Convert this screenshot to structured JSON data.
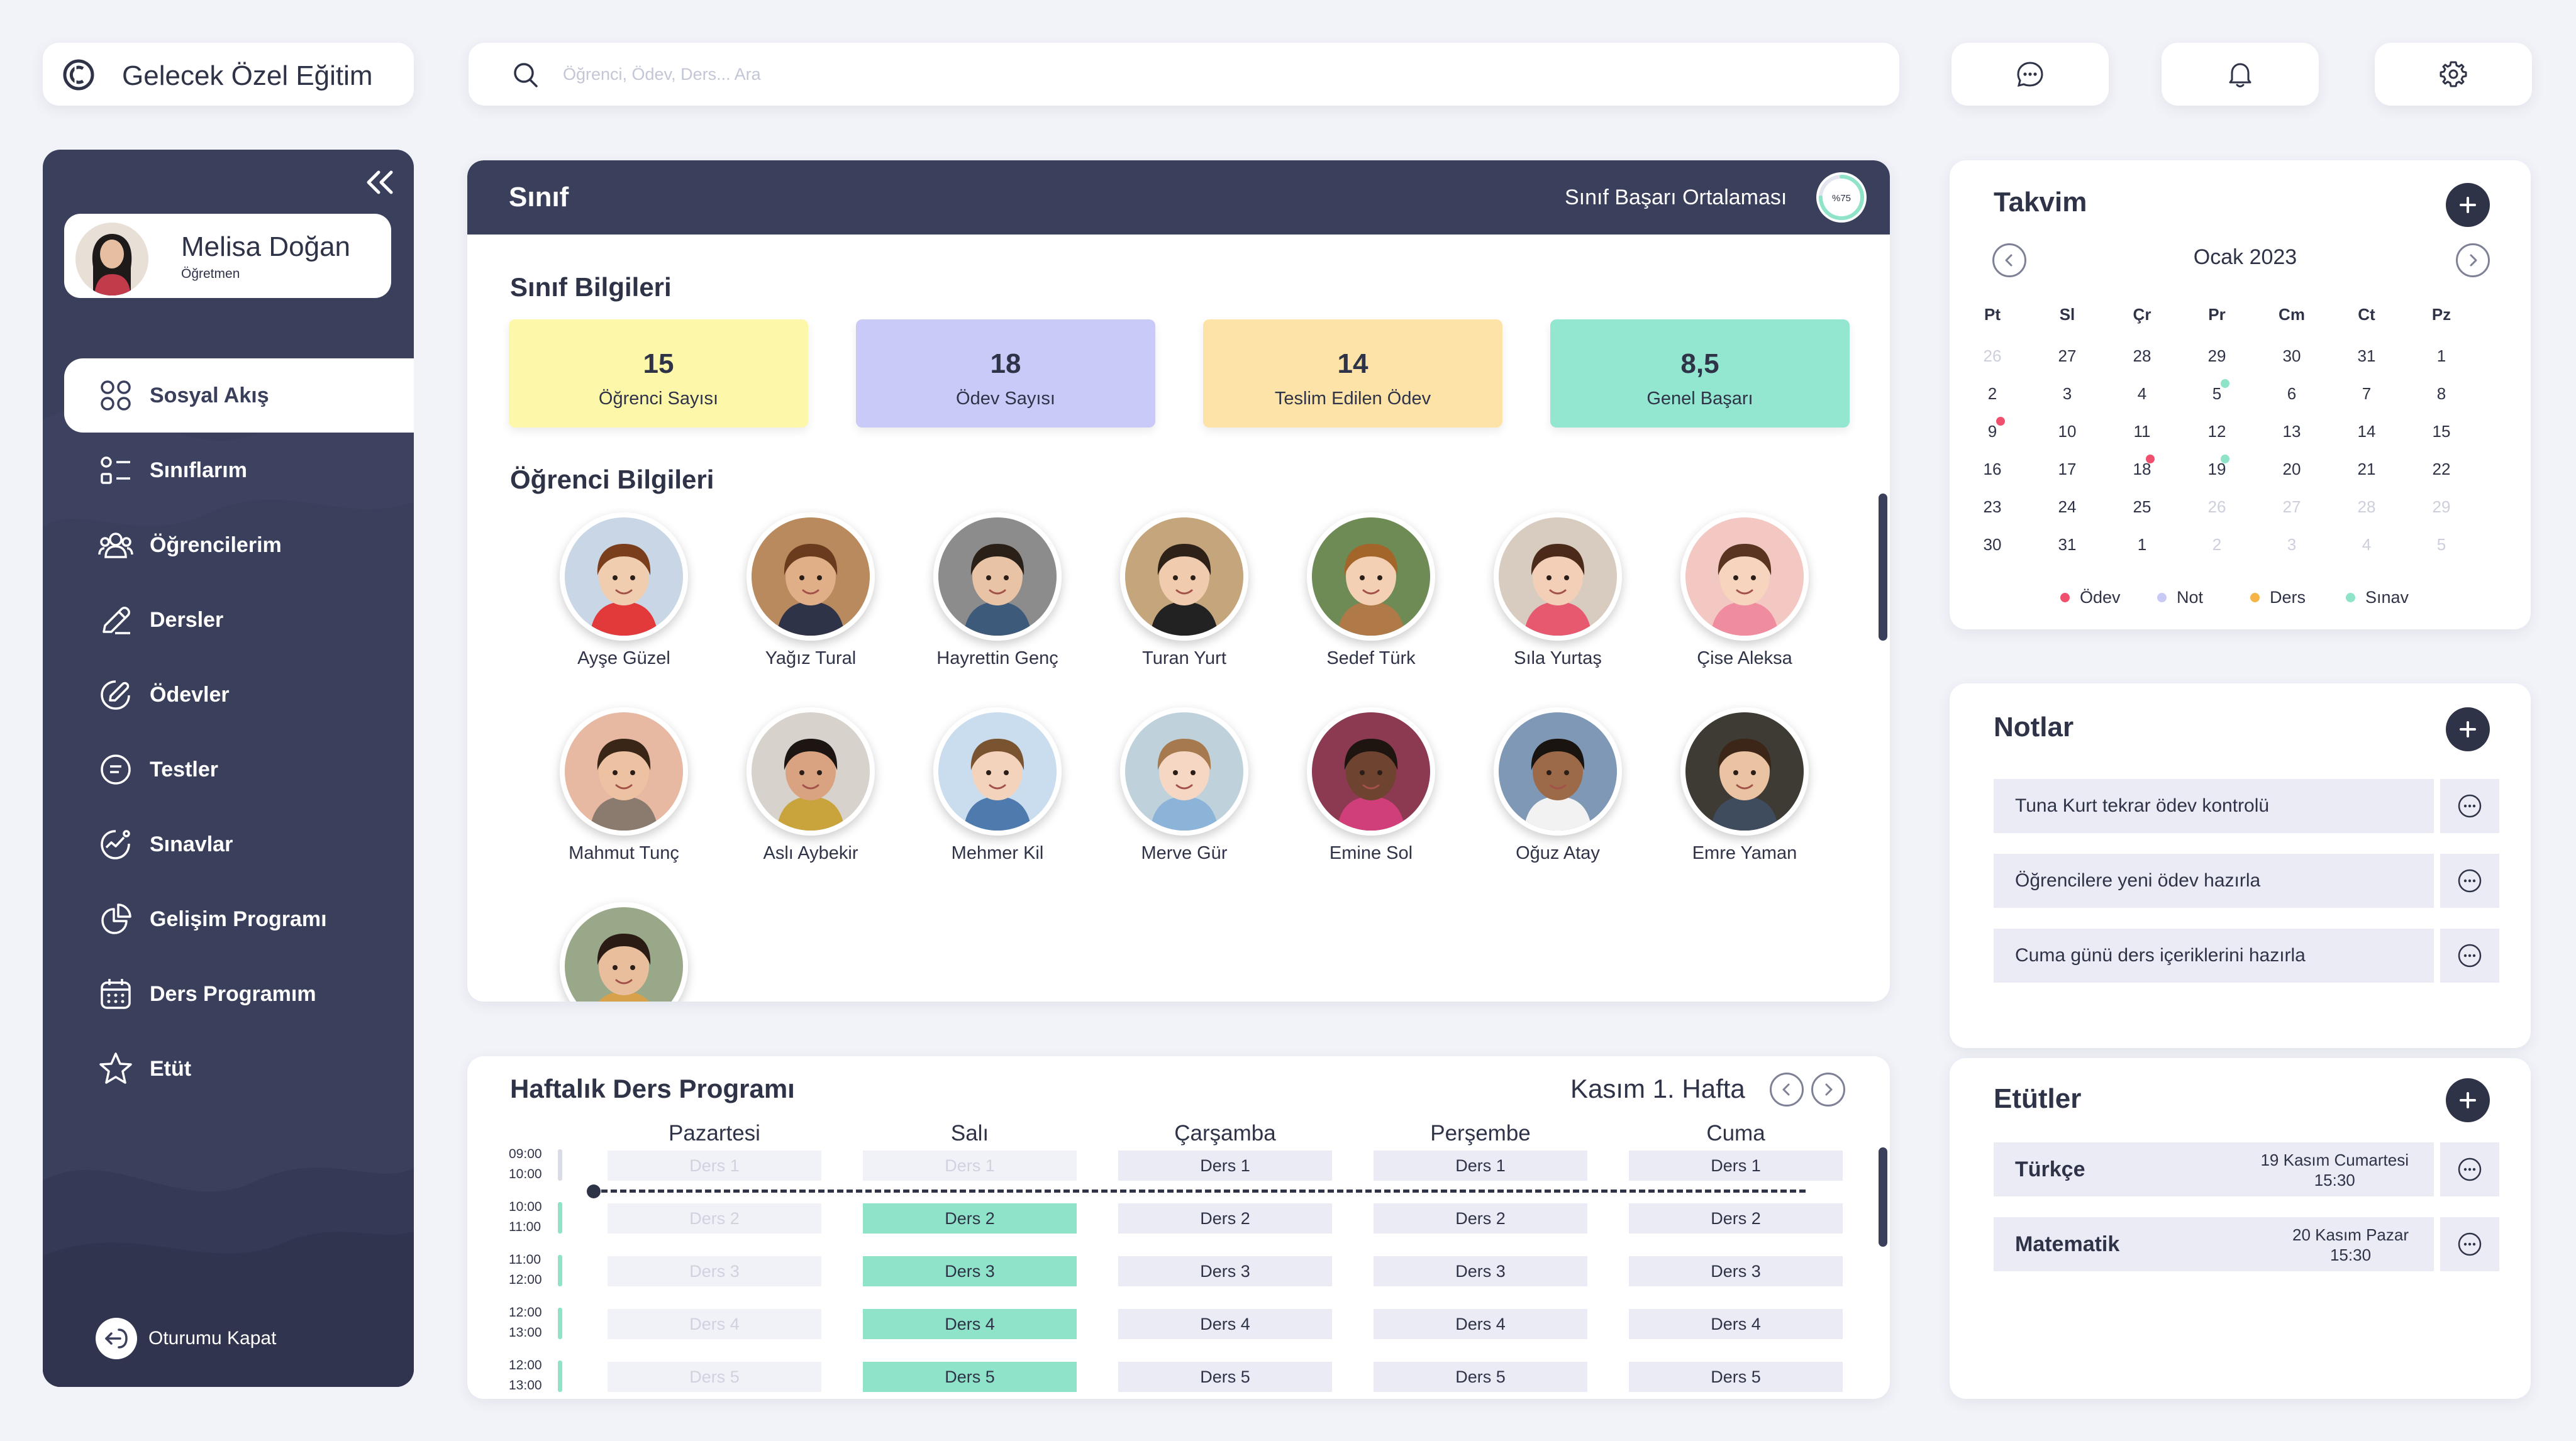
{
  "app": {
    "title": "Gelecek Özel Eğitim"
  },
  "search": {
    "placeholder": "Öğrenci, Ödev, Ders... Ara"
  },
  "user": {
    "name": "Melisa Doğan",
    "role": "Öğretmen"
  },
  "nav": [
    {
      "label": "Sosyal Akış",
      "icon": "apps-icon",
      "active": true
    },
    {
      "label": "Sınıflarım",
      "icon": "list-icon"
    },
    {
      "label": "Öğrencilerim",
      "icon": "users-icon"
    },
    {
      "label": "Dersler",
      "icon": "pen-icon"
    },
    {
      "label": "Ödevler",
      "icon": "edit-circle-icon"
    },
    {
      "label": "Testler",
      "icon": "document-icon"
    },
    {
      "label": "Sınavlar",
      "icon": "activity-icon"
    },
    {
      "label": "Gelişim Programı",
      "icon": "pie-chart-icon"
    },
    {
      "label": "Ders Programım",
      "icon": "calendar-icon"
    },
    {
      "label": "Etüt",
      "icon": "star-icon"
    }
  ],
  "logout": {
    "label": "Oturumu Kapat"
  },
  "class_panel": {
    "title": "Sınıf",
    "average_label": "Sınıf Başarı Ortalaması",
    "average_value": "%75",
    "average_percent": 75,
    "info_title": "Sınıf Bilgileri",
    "stats": [
      {
        "value": "15",
        "label": "Öğrenci Sayısı",
        "color": "#FDF7A9"
      },
      {
        "value": "18",
        "label": "Ödev Sayısı",
        "color": "#C9CAF8"
      },
      {
        "value": "14",
        "label": "Teslim Edilen Ödev",
        "color": "#FDE3A8"
      },
      {
        "value": "8,5",
        "label": "Genel Başarı",
        "color": "#93E6D0"
      }
    ],
    "students_title": "Öğrenci  Bilgileri",
    "students": [
      {
        "name": "Ayşe Güzel"
      },
      {
        "name": "Yağız Tural"
      },
      {
        "name": "Hayrettin Genç"
      },
      {
        "name": "Turan Yurt"
      },
      {
        "name": "Sedef Türk"
      },
      {
        "name": "Sıla Yurtaş"
      },
      {
        "name": "Çise Aleksa"
      },
      {
        "name": "Mahmut Tunç"
      },
      {
        "name": "Aslı Aybekir"
      },
      {
        "name": "Mehmer Kil"
      },
      {
        "name": "Merve Gür"
      },
      {
        "name": "Emine Sol"
      },
      {
        "name": "Oğuz Atay"
      },
      {
        "name": "Emre Yaman"
      },
      {
        "name": ""
      }
    ]
  },
  "weekly": {
    "title": "Haftalık Ders Programı",
    "week_label": "Kasım 1. Hafta",
    "days": [
      "Pazartesi",
      "Salı",
      "Çarşamba",
      "Perşembe",
      "Cuma"
    ],
    "times": [
      {
        "start": "09:00",
        "end": "10:00"
      },
      {
        "start": "10:00",
        "end": "11:00"
      },
      {
        "start": "11:00",
        "end": "12:00"
      },
      {
        "start": "12:00",
        "end": "13:00"
      },
      {
        "start": "12:00",
        "end": "13:00"
      }
    ],
    "lessons": [
      "Ders 1",
      "Ders 2",
      "Ders 3",
      "Ders 4",
      "Ders 5"
    ]
  },
  "calendar": {
    "title": "Takvim",
    "month": "Ocak 2023",
    "weekdays": [
      "Pt",
      "Sl",
      "Çr",
      "Pr",
      "Cm",
      "Ct",
      "Pz"
    ],
    "rows": [
      [
        "26",
        "27",
        "28",
        "29",
        "30",
        "31",
        "1"
      ],
      [
        "2",
        "3",
        "4",
        "5",
        "6",
        "7",
        "8"
      ],
      [
        "9",
        "10",
        "11",
        "12",
        "13",
        "14",
        "15"
      ],
      [
        "16",
        "17",
        "18",
        "19",
        "20",
        "21",
        "22"
      ],
      [
        "23",
        "24",
        "25",
        "26",
        "27",
        "28",
        "29"
      ],
      [
        "30",
        "31",
        "1",
        "2",
        "3",
        "4",
        "5"
      ]
    ],
    "legend": [
      {
        "label": "Ödev",
        "color": "#F0506E"
      },
      {
        "label": "Not",
        "color": "#C8C9F4"
      },
      {
        "label": "Ders",
        "color": "#F5B546"
      },
      {
        "label": "Sınav",
        "color": "#8EE3C9"
      }
    ]
  },
  "notes": {
    "title": "Notlar",
    "items": [
      "Tuna Kurt tekrar ödev kontrolü",
      "Öğrencilere yeni ödev hazırla",
      "Cuma günü  ders içeriklerini hazırla"
    ]
  },
  "etutler": {
    "title": "Etütler",
    "items": [
      {
        "subject": "Türkçe",
        "date": "19 Kasım Cumartesi",
        "time": "15:30"
      },
      {
        "subject": "Matematik",
        "date": "20 Kasım Pazar",
        "time": "15:30"
      }
    ]
  }
}
